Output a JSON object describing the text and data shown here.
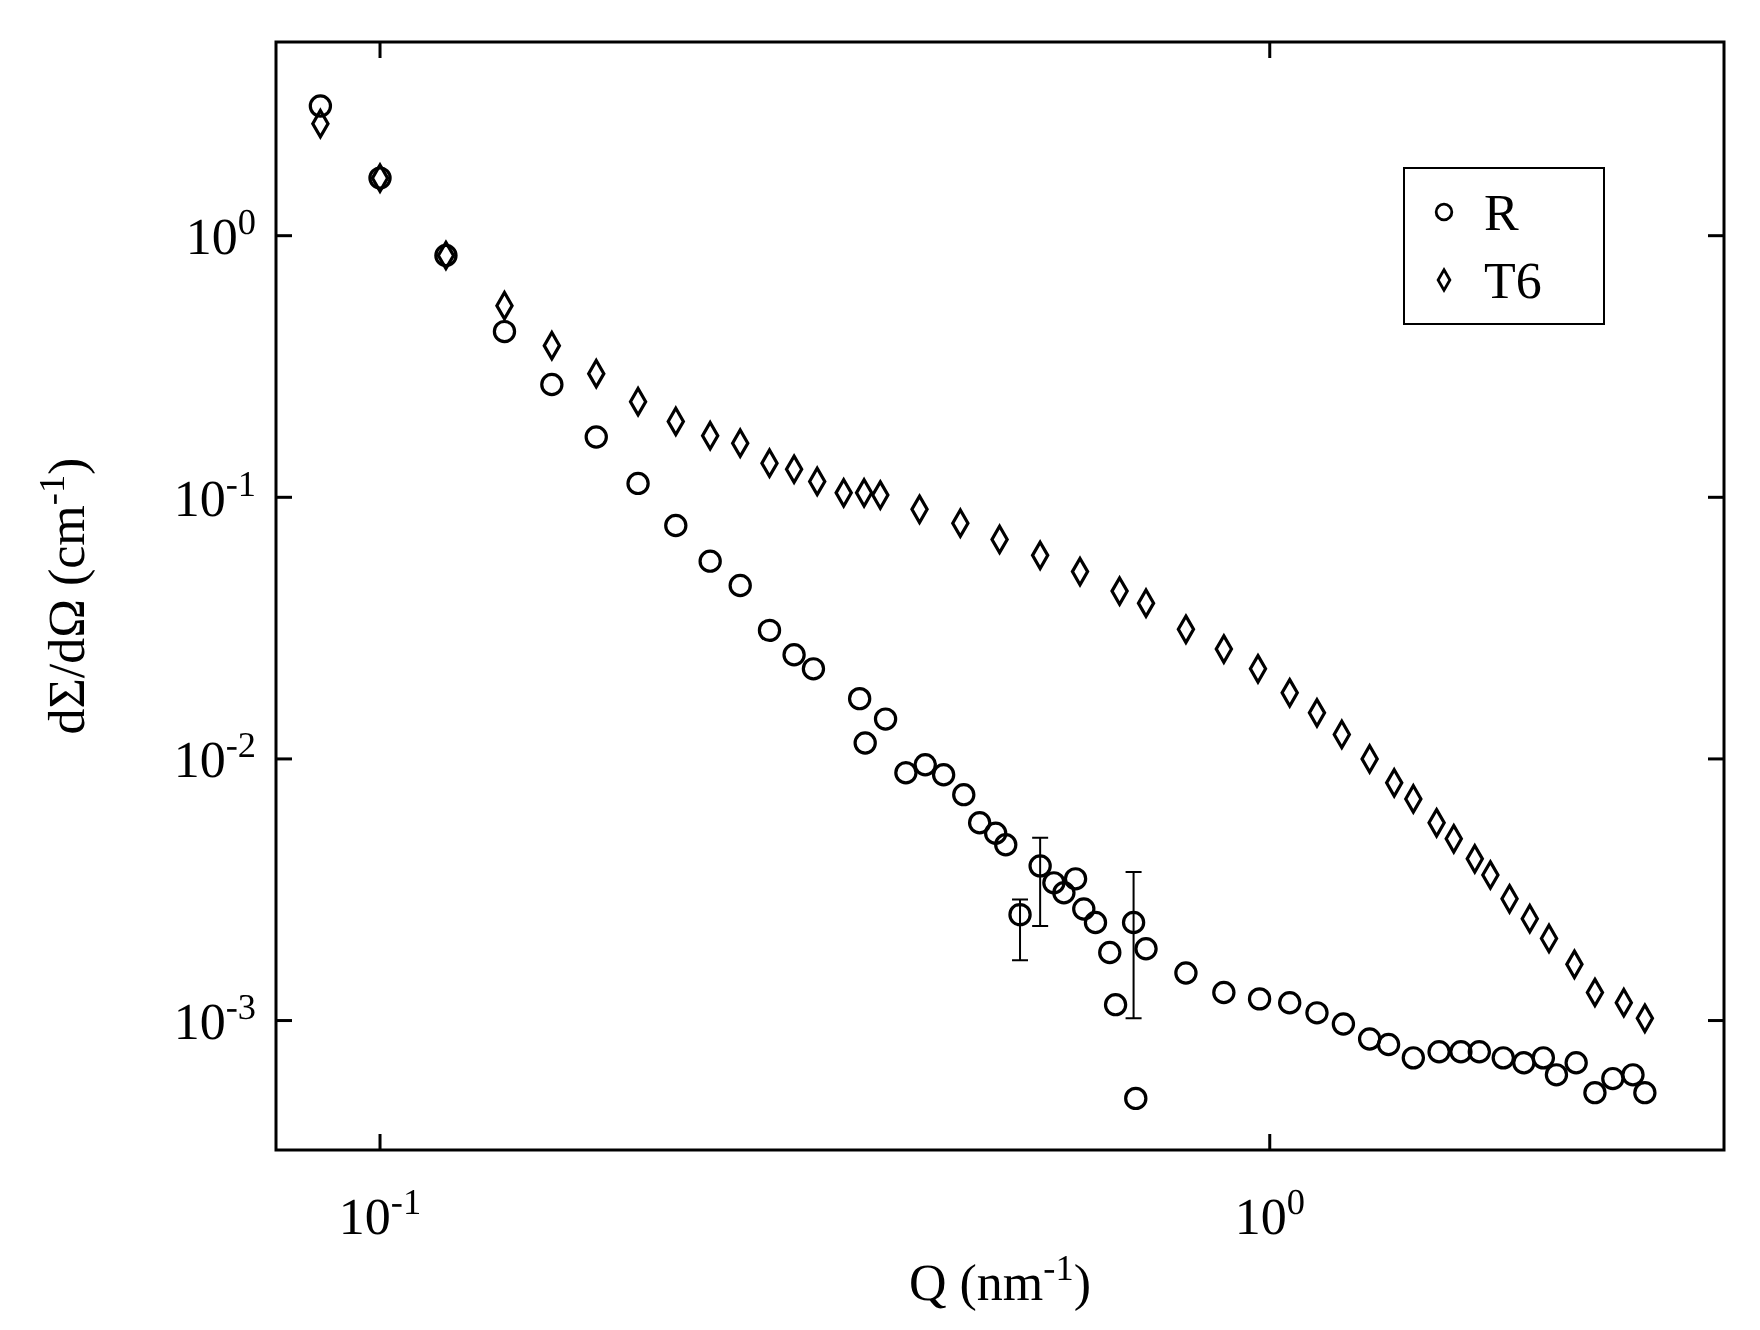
{
  "chart_data": {
    "type": "scatter",
    "xlabel": "Q (nm$^{-1}$)",
    "ylabel": "dΣ/dΩ (cm$^{-1}$)",
    "log": "xy",
    "grid": false,
    "legend": "top right",
    "xlim": [
      0.0764,
      3.24
    ],
    "ylim": [
      0.00032,
      5.5
    ],
    "xticks": [
      {
        "value": 0.1,
        "label": "10$^{-1}$"
      },
      {
        "value": 1,
        "label": "10$^{0}$"
      }
    ],
    "yticks": [
      {
        "value": 0.001,
        "label": "10$^{-3}$"
      },
      {
        "value": 0.01,
        "label": "10$^{-2}$"
      },
      {
        "value": 0.1,
        "label": "10$^{-1}$"
      },
      {
        "value": 1,
        "label": "10$^{0}$"
      }
    ],
    "series": [
      {
        "name": "R",
        "color": "#000000",
        "marker": "circle",
        "x": [
          0.0857,
          0.1,
          0.1186,
          0.138,
          0.156,
          0.175,
          0.195,
          0.215,
          0.235,
          0.254,
          0.274,
          0.292,
          0.307,
          0.346,
          0.351,
          0.37,
          0.39,
          0.41,
          0.43,
          0.453,
          0.472,
          0.492,
          0.505,
          0.524,
          0.552,
          0.572,
          0.587,
          0.605,
          0.618,
          0.637,
          0.661,
          0.671,
          0.703,
          0.707,
          0.726,
          0.805,
          0.888,
          0.974,
          1.053,
          1.13,
          1.21,
          1.295,
          1.36,
          1.45,
          1.55,
          1.64,
          1.72,
          1.83,
          1.93,
          2.03,
          2.1,
          2.21,
          2.32,
          2.43,
          2.56,
          2.64
        ],
        "values": [
          3.13,
          1.66,
          0.84,
          0.43,
          0.27,
          0.17,
          0.113,
          0.078,
          0.057,
          0.046,
          0.031,
          0.025,
          0.0221,
          0.017,
          0.0115,
          0.0142,
          0.00885,
          0.0095,
          0.0087,
          0.0073,
          0.0057,
          0.0052,
          0.0047,
          0.00254,
          0.0039,
          0.00336,
          0.00308,
          0.00348,
          0.00267,
          0.00237,
          0.00182,
          0.00115,
          0.00237,
          0.000504,
          0.00188,
          0.00152,
          0.00128,
          0.00121,
          0.00117,
          0.00107,
          0.00097,
          0.00085,
          0.00081,
          0.00072,
          0.00076,
          0.00076,
          0.00076,
          0.00072,
          0.00069,
          0.00072,
          0.00062,
          0.00069,
          0.00053,
          0.0006,
          0.00062,
          0.00053
        ],
        "errors": [
          null,
          null,
          null,
          null,
          null,
          null,
          null,
          null,
          null,
          null,
          null,
          null,
          null,
          null,
          null,
          null,
          null,
          null,
          null,
          null,
          null,
          null,
          null,
          [
            0.0017,
            0.0029
          ],
          [
            0.0023,
            0.005
          ],
          null,
          null,
          null,
          null,
          null,
          null,
          null,
          [
            0.00102,
            0.0037
          ],
          null,
          null,
          null,
          null,
          null,
          null,
          null,
          null,
          null,
          null,
          null,
          null,
          null,
          null,
          null,
          null,
          null,
          null,
          null,
          null,
          null,
          null,
          null
        ]
      },
      {
        "name": "T6",
        "color": "#000000",
        "marker": "diamond",
        "x": [
          0.0857,
          0.1,
          0.1186,
          0.138,
          0.156,
          0.175,
          0.195,
          0.215,
          0.235,
          0.254,
          0.274,
          0.292,
          0.31,
          0.332,
          0.35,
          0.365,
          0.404,
          0.449,
          0.497,
          0.552,
          0.612,
          0.678,
          0.726,
          0.805,
          0.888,
          0.97,
          1.053,
          1.13,
          1.205,
          1.295,
          1.38,
          1.45,
          1.54,
          1.61,
          1.7,
          1.77,
          1.86,
          1.96,
          2.06,
          2.2,
          2.32,
          2.5,
          2.64
        ],
        "values": [
          2.68,
          1.66,
          0.84,
          0.54,
          0.38,
          0.297,
          0.232,
          0.195,
          0.172,
          0.161,
          0.135,
          0.128,
          0.115,
          0.104,
          0.104,
          0.102,
          0.09,
          0.0796,
          0.069,
          0.06,
          0.052,
          0.0438,
          0.0394,
          0.0313,
          0.0263,
          0.0221,
          0.0179,
          0.015,
          0.0124,
          0.01,
          0.0081,
          0.00703,
          0.0057,
          0.00495,
          0.00415,
          0.0036,
          0.00292,
          0.00245,
          0.00206,
          0.00164,
          0.00128,
          0.00117,
          0.00102
        ]
      }
    ]
  }
}
